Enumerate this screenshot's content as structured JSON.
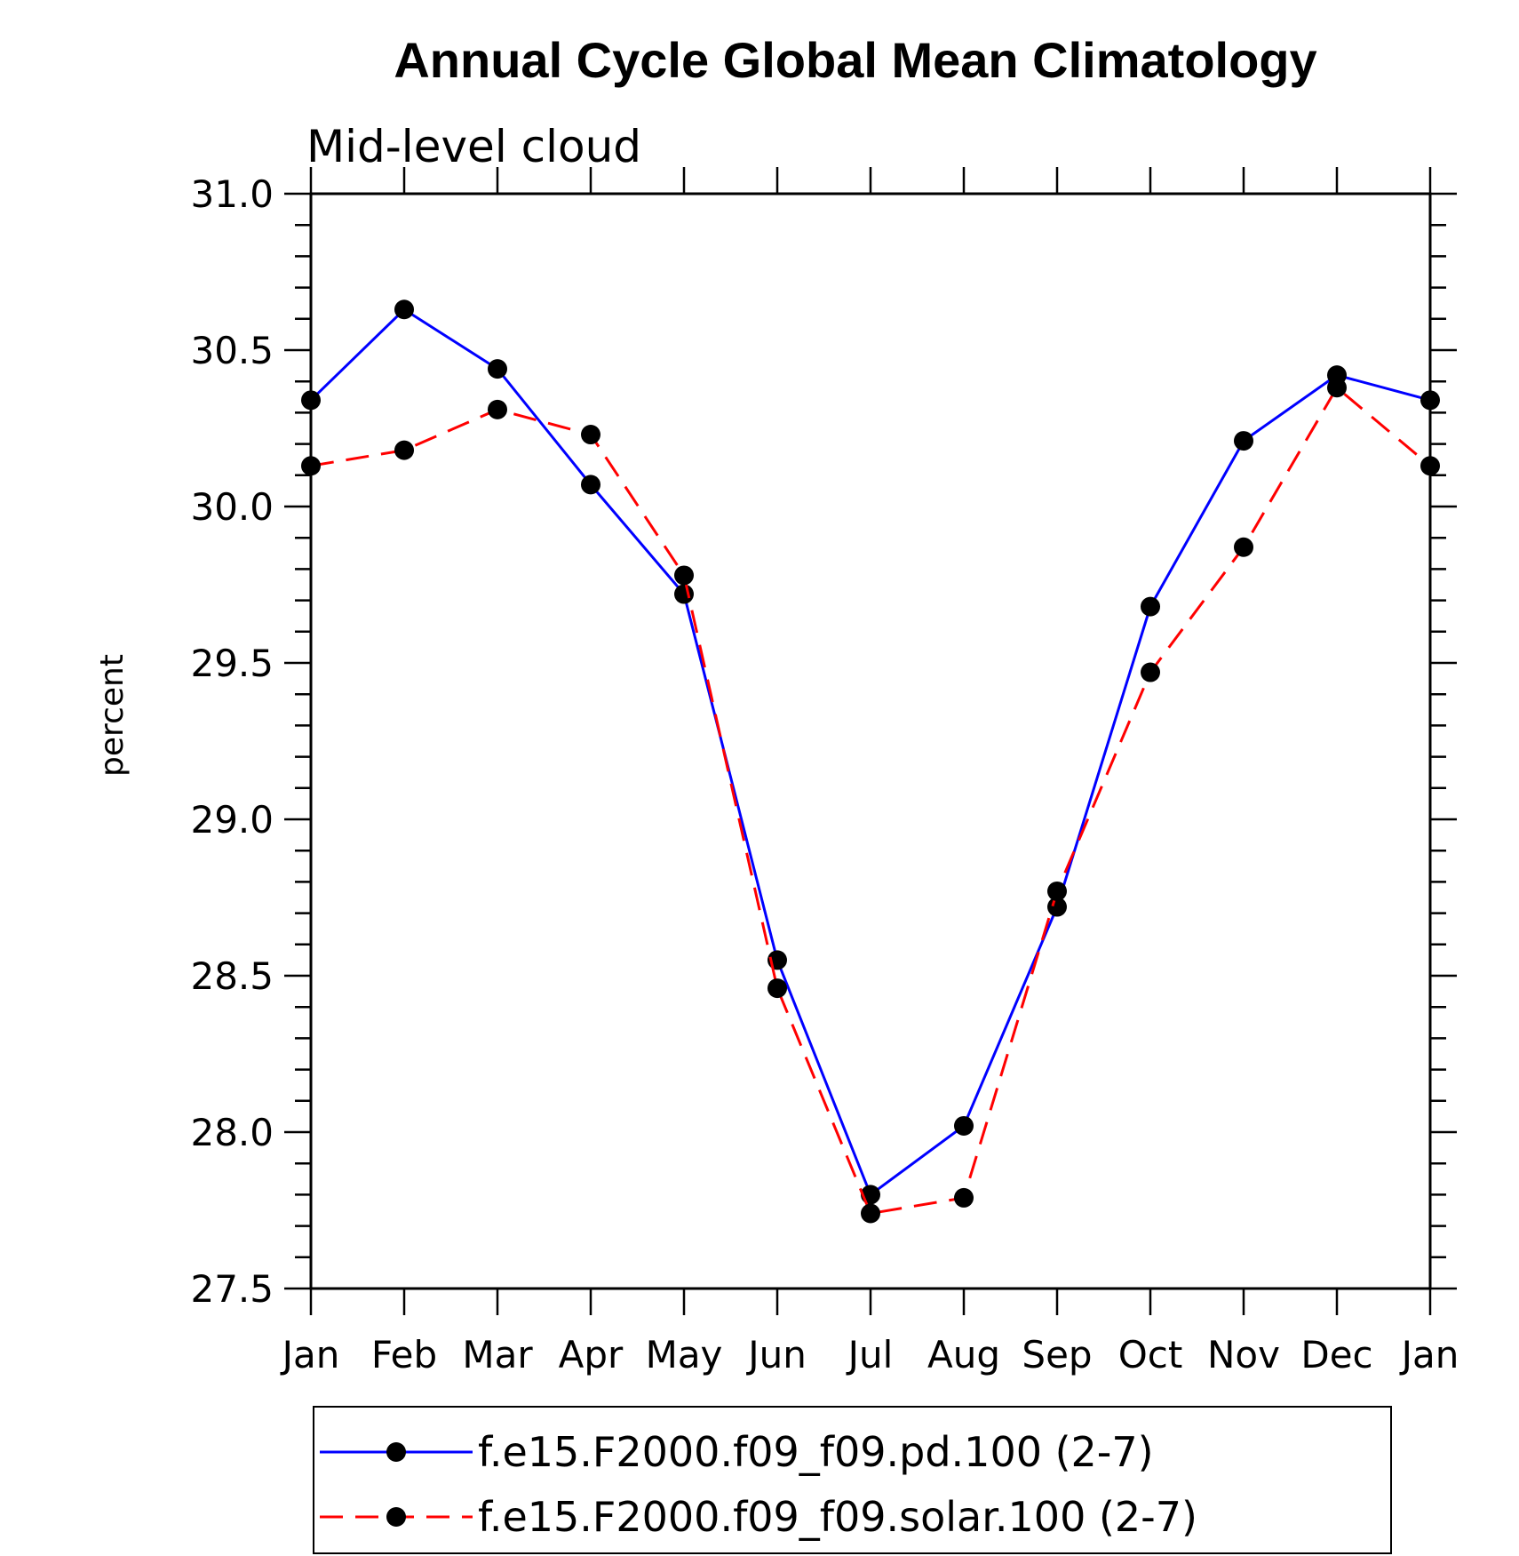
{
  "chart_data": {
    "type": "line",
    "title": "Annual Cycle Global Mean Climatology",
    "subtitle": "Mid-level cloud",
    "ylabel": "percent",
    "xlabel": "",
    "categories": [
      "Jan",
      "Feb",
      "Mar",
      "Apr",
      "May",
      "Jun",
      "Jul",
      "Aug",
      "Sep",
      "Oct",
      "Nov",
      "Dec",
      "Jan"
    ],
    "ylim": [
      27.5,
      31.0
    ],
    "yticks": [
      "27.5",
      "28.0",
      "28.5",
      "29.0",
      "29.5",
      "30.0",
      "30.5",
      "31.0"
    ],
    "grid": false,
    "legend_position": "bottom",
    "series": [
      {
        "name": "f.e15.F2000.f09_f09.pd.100 (2-7)",
        "color": "#0000ff",
        "line_style": "solid",
        "marker": "filled-circle",
        "values": [
          30.34,
          30.63,
          30.44,
          30.07,
          29.72,
          28.55,
          27.8,
          28.02,
          28.72,
          29.68,
          30.21,
          30.42,
          30.34
        ]
      },
      {
        "name": "f.e15.F2000.f09_f09.solar.100 (2-7)",
        "color": "#ff0000",
        "line_style": "dashed",
        "marker": "filled-circle",
        "values": [
          30.13,
          30.18,
          30.31,
          30.23,
          29.78,
          28.46,
          27.74,
          27.79,
          28.77,
          29.47,
          29.87,
          30.38,
          30.13
        ]
      }
    ]
  }
}
